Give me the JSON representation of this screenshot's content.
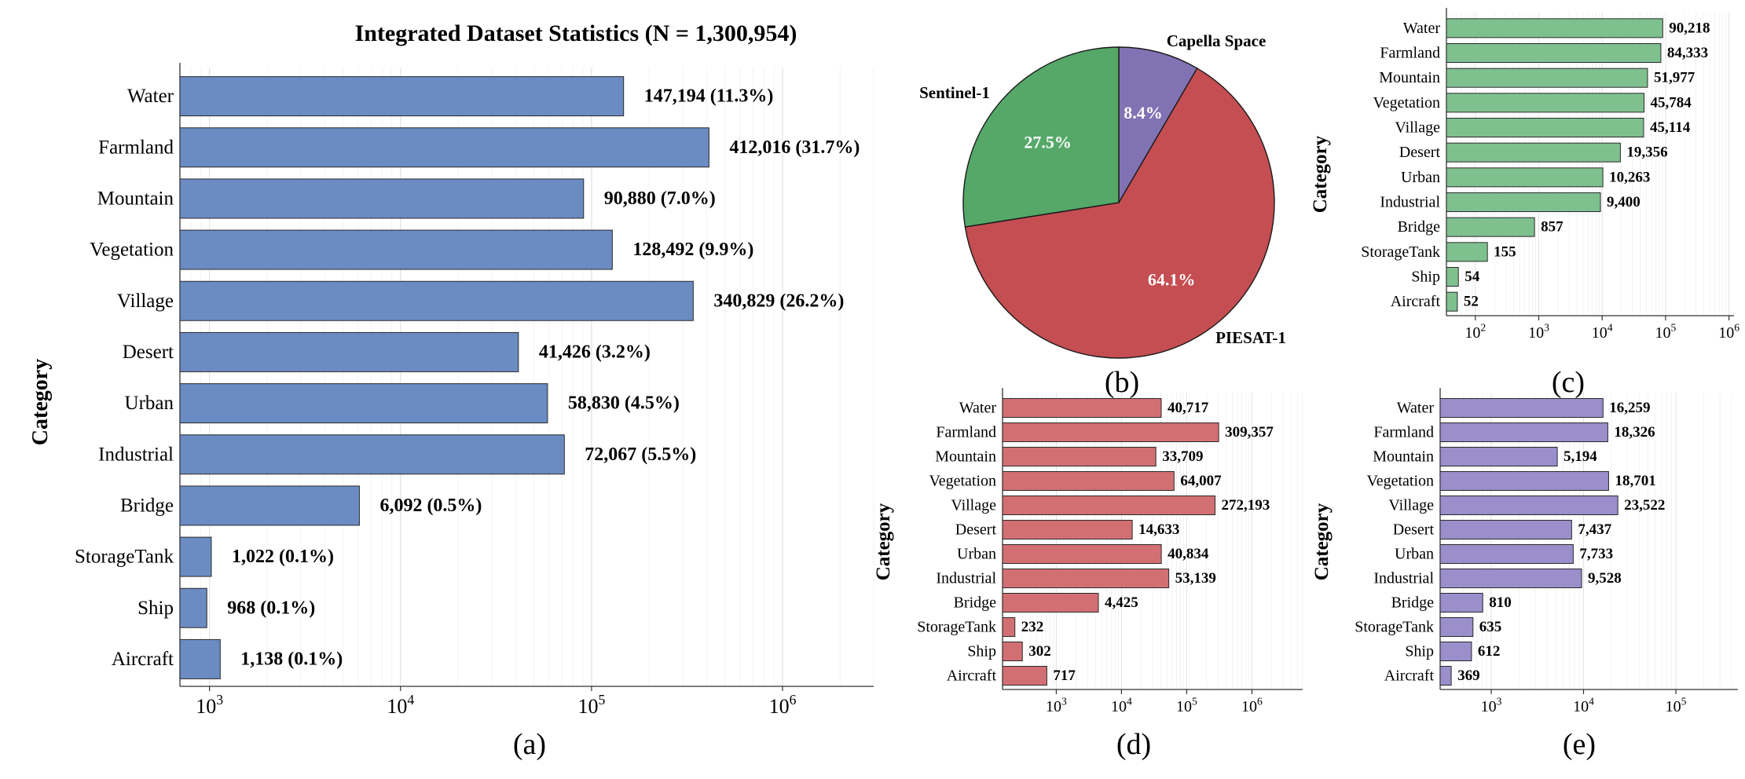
{
  "panel_labels": {
    "a": "(a)",
    "b": "(b)",
    "c": "(c)",
    "d": "(d)",
    "e": "(e)"
  },
  "colors": {
    "a": "#6b8bc3",
    "b_sentinel": "#55a868",
    "b_piesat": "#c44e52",
    "b_capella": "#8172b3",
    "c": "#7fc08f",
    "d": "#d26f73",
    "e": "#9a8ecb"
  },
  "chart_data": [
    {
      "id": "a",
      "type": "bar",
      "orientation": "horizontal",
      "title": "Integrated Dataset Statistics (N = 1,300,954)",
      "ylabel": "Category",
      "xscale": "log",
      "xlim": [
        700,
        3000000
      ],
      "xticks": [
        {
          "base": "10",
          "exp": "3"
        },
        {
          "base": "10",
          "exp": "4"
        },
        {
          "base": "10",
          "exp": "5"
        },
        {
          "base": "10",
          "exp": "6"
        }
      ],
      "categories": [
        "Water",
        "Farmland",
        "Mountain",
        "Vegetation",
        "Village",
        "Desert",
        "Urban",
        "Industrial",
        "Bridge",
        "StorageTank",
        "Ship",
        "Aircraft"
      ],
      "values": [
        147194,
        412016,
        90880,
        128492,
        340829,
        41426,
        58830,
        72067,
        6092,
        1022,
        968,
        1138
      ],
      "labels": [
        "147,194 (11.3%)",
        "412,016 (31.7%)",
        "90,880 (7.0%)",
        "128,492 (9.9%)",
        "340,829 (26.2%)",
        "41,426 (3.2%)",
        "58,830 (4.5%)",
        "72,067 (5.5%)",
        "6,092 (0.5%)",
        "1,022 (0.1%)",
        "968 (0.1%)",
        "1,138 (0.1%)"
      ]
    },
    {
      "id": "b",
      "type": "pie",
      "slices": [
        {
          "name": "Capella Space",
          "value": 8.4,
          "label": "8.4%"
        },
        {
          "name": "PIESAT-1",
          "value": 64.1,
          "label": "64.1%"
        },
        {
          "name": "Sentinel-1",
          "value": 27.5,
          "label": "27.5%"
        }
      ]
    },
    {
      "id": "c",
      "type": "bar",
      "orientation": "horizontal",
      "ylabel": "Category",
      "xscale": "log",
      "xlim": [
        35,
        1200000
      ],
      "xticks": [
        {
          "base": "10",
          "exp": "2"
        },
        {
          "base": "10",
          "exp": "3"
        },
        {
          "base": "10",
          "exp": "4"
        },
        {
          "base": "10",
          "exp": "5"
        },
        {
          "base": "10",
          "exp": "6"
        }
      ],
      "categories": [
        "Water",
        "Farmland",
        "Mountain",
        "Vegetation",
        "Village",
        "Desert",
        "Urban",
        "Industrial",
        "Bridge",
        "StorageTank",
        "Ship",
        "Aircraft"
      ],
      "values": [
        90218,
        84333,
        51977,
        45784,
        45114,
        19356,
        10263,
        9400,
        857,
        155,
        54,
        52
      ],
      "labels": [
        "90,218",
        "84,333",
        "51,977",
        "45,784",
        "45,114",
        "19,356",
        "10,263",
        "9,400",
        "857",
        "155",
        "54",
        "52"
      ]
    },
    {
      "id": "d",
      "type": "bar",
      "orientation": "horizontal",
      "ylabel": "Category",
      "xscale": "log",
      "xlim": [
        150,
        6000000
      ],
      "xticks": [
        {
          "base": "10",
          "exp": "3"
        },
        {
          "base": "10",
          "exp": "4"
        },
        {
          "base": "10",
          "exp": "5"
        },
        {
          "base": "10",
          "exp": "6"
        }
      ],
      "categories": [
        "Water",
        "Farmland",
        "Mountain",
        "Vegetation",
        "Village",
        "Desert",
        "Urban",
        "Industrial",
        "Bridge",
        "StorageTank",
        "Ship",
        "Aircraft"
      ],
      "values": [
        40717,
        309357,
        33709,
        64007,
        272193,
        14633,
        40834,
        53139,
        4425,
        232,
        302,
        717
      ],
      "labels": [
        "40,717",
        "309,357",
        "33,709",
        "64,007",
        "272,193",
        "14,633",
        "40,834",
        "53,139",
        "4,425",
        "232",
        "302",
        "717"
      ]
    },
    {
      "id": "e",
      "type": "bar",
      "orientation": "horizontal",
      "ylabel": "Category",
      "xscale": "log",
      "xlim": [
        280,
        470000
      ],
      "xticks": [
        {
          "base": "10",
          "exp": "3"
        },
        {
          "base": "10",
          "exp": "4"
        },
        {
          "base": "10",
          "exp": "5"
        }
      ],
      "categories": [
        "Water",
        "Farmland",
        "Mountain",
        "Vegetation",
        "Village",
        "Desert",
        "Urban",
        "Industrial",
        "Bridge",
        "StorageTank",
        "Ship",
        "Aircraft"
      ],
      "values": [
        16259,
        18326,
        5194,
        18701,
        23522,
        7437,
        7733,
        9528,
        810,
        635,
        612,
        369
      ],
      "labels": [
        "16,259",
        "18,326",
        "5,194",
        "18,701",
        "23,522",
        "7,437",
        "7,733",
        "9,528",
        "810",
        "635",
        "612",
        "369"
      ]
    }
  ]
}
